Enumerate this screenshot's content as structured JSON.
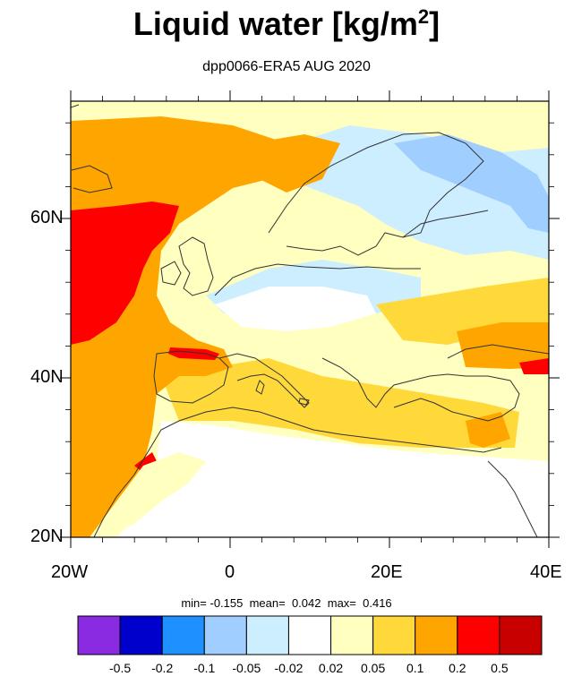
{
  "title_main": "Liquid water  [kg/m",
  "title_sup": "2",
  "title_end": "]",
  "subtitle": "dpp0066-ERA5 AUG 2020",
  "lat_labels": [
    "60N",
    "40N",
    "20N"
  ],
  "lon_labels": [
    "20W",
    "0",
    "20E",
    "40E"
  ],
  "stats": {
    "min_label": "min=",
    "min_value": "-0.155",
    "mean_label": "mean=",
    "mean_value": "0.042",
    "max_label": "max=",
    "max_value": "0.416"
  },
  "colorbar": {
    "colors": [
      "#8a2be2",
      "#0000cd",
      "#1e90ff",
      "#a0cfff",
      "#cdeeff",
      "#ffffff",
      "#ffffc0",
      "#ffd93a",
      "#ffa500",
      "#ff0000",
      "#c80000"
    ],
    "labels": [
      "-0.5",
      "-0.2",
      "-0.1",
      "-0.05",
      "-0.02",
      "0.02",
      "0.05",
      "0.1",
      "0.2",
      "0.5"
    ]
  },
  "palette": {
    "land_outline": "#333333",
    "frame": "#000000"
  }
}
